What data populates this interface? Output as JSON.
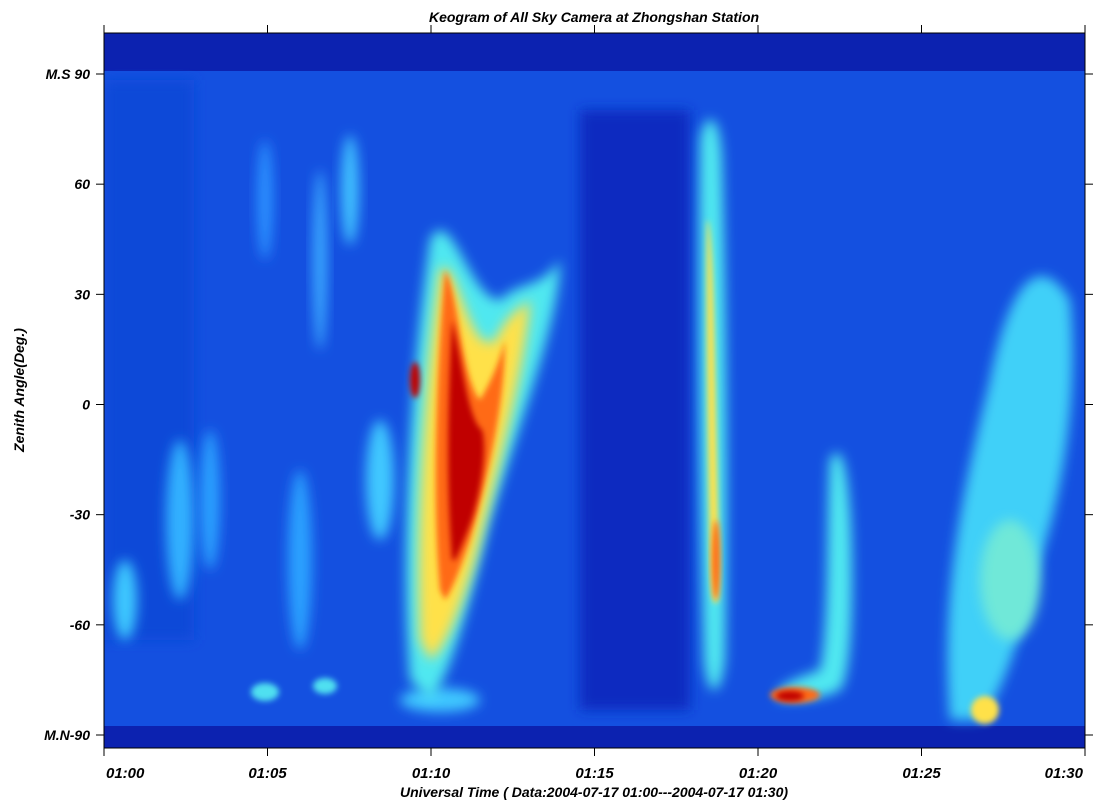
{
  "chart_data": {
    "type": "heatmap",
    "title": "Keogram of All Sky Camera at Zhongshan Station",
    "xlabel": "Universal Time ( Data:2004-07-17 01:00---2004-07-17 01:30)",
    "ylabel": "Zenith Angle(Deg.)",
    "xlim": [
      "01:00",
      "01:30"
    ],
    "ylim": [
      -90,
      90
    ],
    "x_ticks": [
      "01:00",
      "01:05",
      "01:10",
      "01:15",
      "01:20",
      "01:25",
      "01:30"
    ],
    "y_ticks": [
      {
        "value": 90,
        "label": "M.S 90"
      },
      {
        "value": 60,
        "label": "60"
      },
      {
        "value": 30,
        "label": "30"
      },
      {
        "value": 0,
        "label": "0"
      },
      {
        "value": -30,
        "label": "-30"
      },
      {
        "value": -60,
        "label": "-60"
      },
      {
        "value": -90,
        "label": "M.N-90"
      }
    ],
    "colormap": [
      "#0a1fa8",
      "#1565f0",
      "#1fb2ff",
      "#5ef0e8",
      "#ffe14a",
      "#ff6a14",
      "#c00000"
    ],
    "background_color": "#1440d8"
  }
}
